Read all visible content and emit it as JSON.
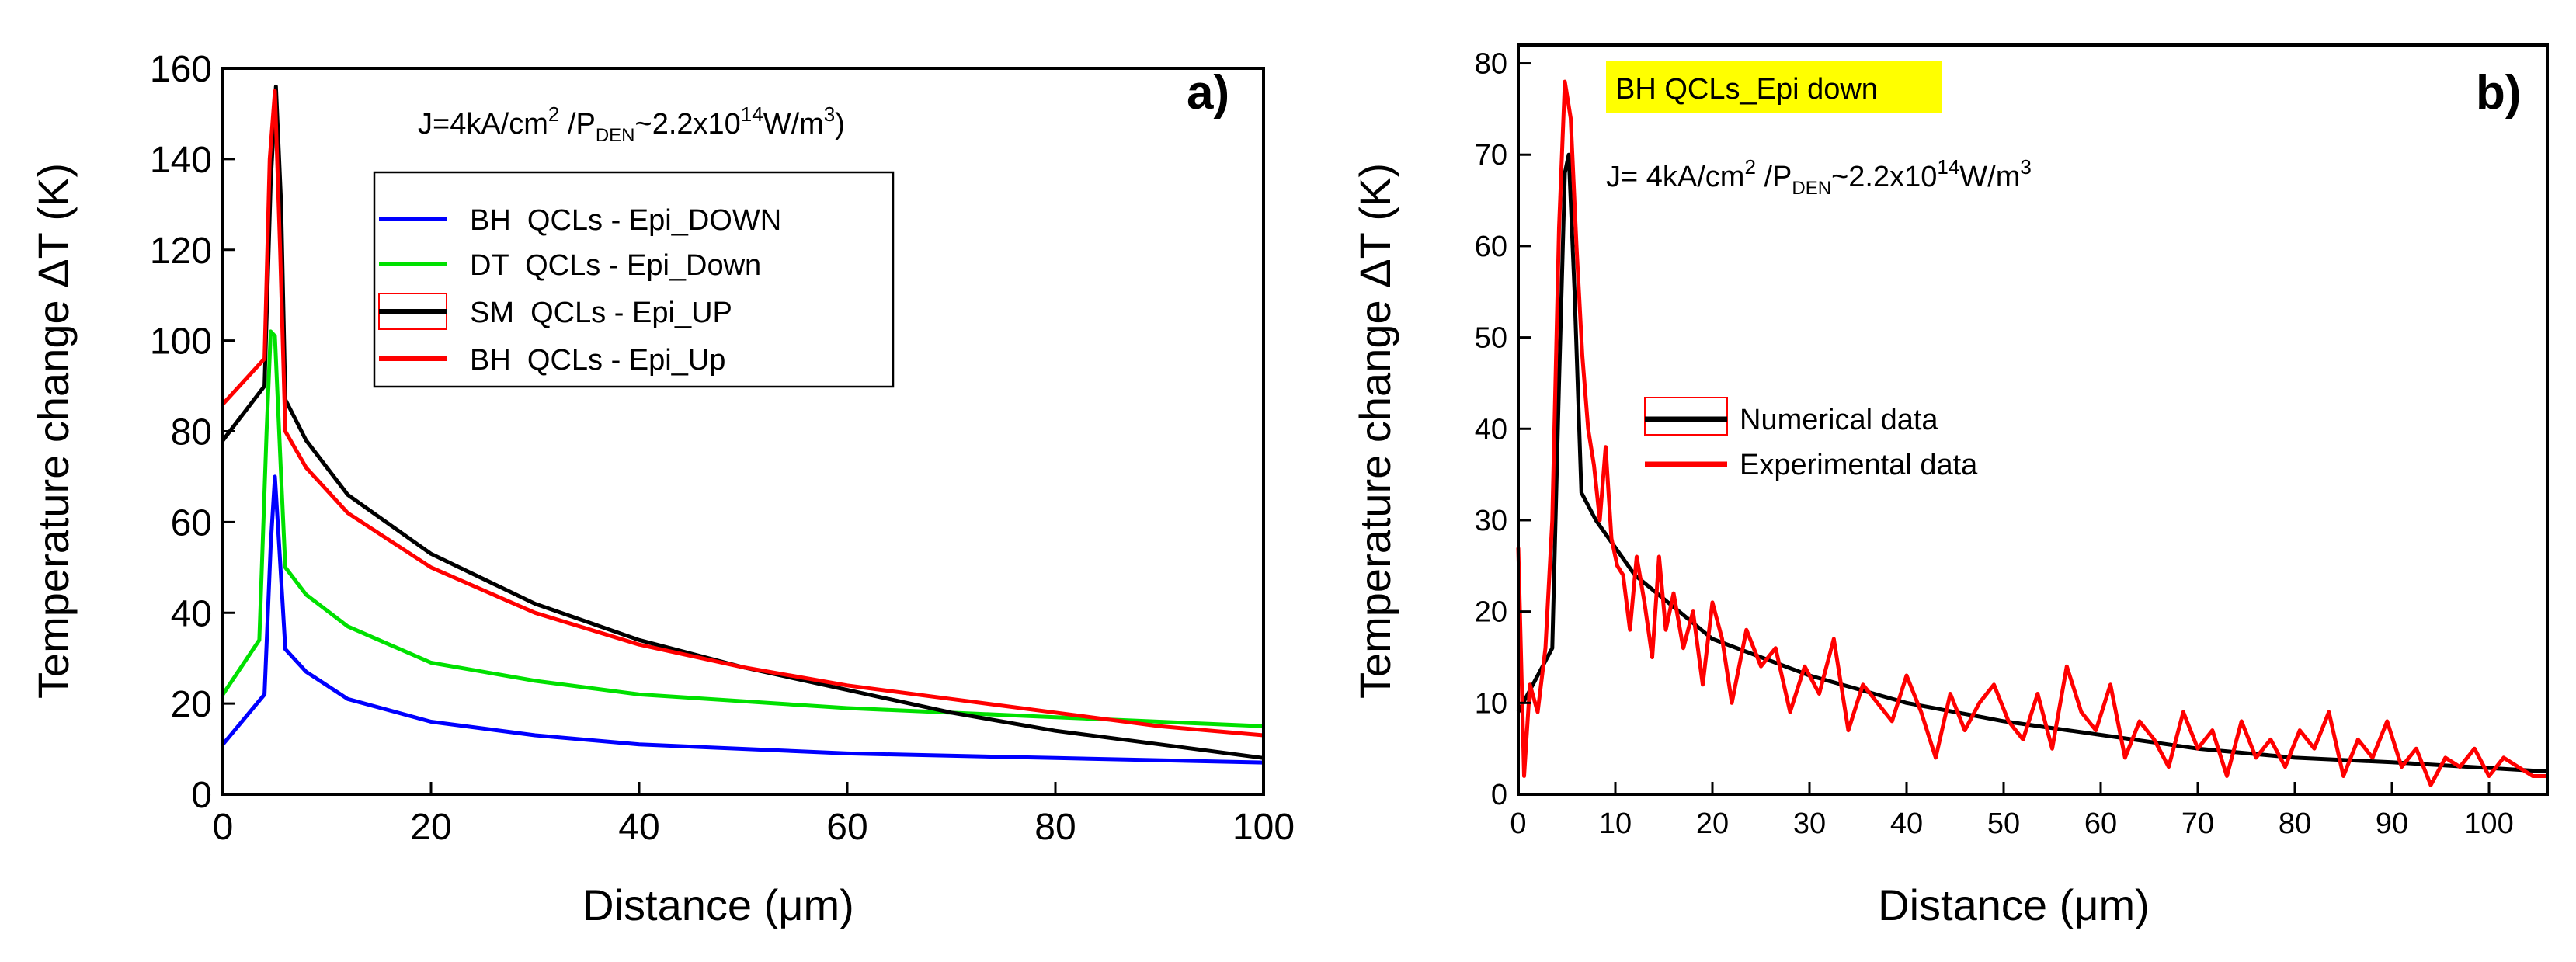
{
  "chart_data": [
    {
      "type": "line",
      "panel_label": "a)",
      "annotation": {
        "main": "J=4kA/cm",
        "sup1": "2",
        "mid": " /P",
        "sub": "DEN",
        "rest": "~2.2x10",
        "sup2": "14",
        "unit": "W/m",
        "sup3": "3",
        "close": ")"
      },
      "ylabel": {
        "text": "Temperature change ",
        "delta": "Δ",
        "symbol": "T (K)"
      },
      "xlabel": {
        "text": "Distance (",
        "mu": "μ",
        "unit": "m)"
      },
      "xlim": [
        0,
        100
      ],
      "ylim": [
        0,
        160
      ],
      "xticks": [
        "0",
        "20",
        "40",
        "60",
        "80",
        "100"
      ],
      "yticks": [
        "0",
        "20",
        "40",
        "60",
        "80",
        "100",
        "120",
        "140",
        "160"
      ],
      "grid": false,
      "legend_position": "upper-middle",
      "series": [
        {
          "name": "BH  QCLs - Epi_DOWN",
          "color": "#0000ff",
          "x": [
            0,
            4,
            4.6,
            5,
            5.4,
            6,
            8,
            12,
            20,
            30,
            40,
            60,
            80,
            100
          ],
          "y": [
            11,
            22,
            55,
            70,
            55,
            32,
            27,
            21,
            16,
            13,
            11,
            9,
            8,
            7
          ]
        },
        {
          "name": "DT  QCLs - Epi_Down",
          "color": "#00e000",
          "x": [
            0,
            3.5,
            4.2,
            4.6,
            5,
            5.6,
            6,
            8,
            12,
            20,
            30,
            40,
            60,
            80,
            100
          ],
          "y": [
            22,
            34,
            80,
            102,
            101,
            70,
            50,
            44,
            37,
            29,
            25,
            22,
            19,
            17,
            15
          ]
        },
        {
          "name": "SM  QCLs - Epi_UP",
          "color": "#000000",
          "x": [
            0,
            4,
            4.6,
            5.1,
            5.6,
            6,
            8,
            12,
            20,
            30,
            40,
            50,
            60,
            70,
            80,
            90,
            100
          ],
          "y": [
            78,
            90,
            135,
            156,
            130,
            87,
            78,
            66,
            53,
            42,
            34,
            28,
            23,
            18,
            14,
            11,
            8
          ]
        },
        {
          "name": "BH  QCLs - Epi_Up",
          "color": "#ff0000",
          "x": [
            0,
            4,
            4.5,
            5,
            5.5,
            6,
            8,
            12,
            20,
            30,
            40,
            50,
            60,
            70,
            80,
            90,
            100
          ],
          "y": [
            86,
            96,
            140,
            155,
            120,
            80,
            72,
            62,
            50,
            40,
            33,
            28,
            24,
            21,
            18,
            15,
            13
          ]
        }
      ]
    },
    {
      "type": "line",
      "panel_label": "b)",
      "title_box": "BH QCLs_Epi down",
      "title_box_color": "#ffff00",
      "annotation": {
        "main": "J= 4kA/cm",
        "sup1": "2",
        "mid": " /P",
        "sub": "DEN",
        "rest": "~2.2x10",
        "sup2": "14",
        "unit": "W/m",
        "sup3": "3"
      },
      "ylabel": {
        "text": "Temperature change ",
        "delta": "Δ",
        "symbol": "T (K)"
      },
      "xlabel": {
        "text": "Distance (",
        "mu": "μ",
        "unit": "m)"
      },
      "xlim": [
        0,
        106
      ],
      "ylim": [
        0,
        82
      ],
      "xticks": [
        "0",
        "10",
        "20",
        "30",
        "40",
        "50",
        "60",
        "70",
        "80",
        "90",
        "100"
      ],
      "yticks": [
        "0",
        "10",
        "20",
        "30",
        "40",
        "50",
        "60",
        "70",
        "80"
      ],
      "grid": false,
      "legend_position": "center",
      "series": [
        {
          "name": "Numerical data",
          "color": "#000000",
          "x": [
            0,
            3.5,
            4.2,
            4.8,
            5.2,
            5.8,
            6.5,
            8,
            12,
            20,
            30,
            40,
            50,
            60,
            70,
            80,
            90,
            106
          ],
          "y": [
            9,
            16,
            45,
            68,
            70,
            55,
            33,
            30,
            24,
            17,
            13,
            10,
            8,
            6.5,
            5,
            4,
            3.5,
            2.5
          ]
        },
        {
          "name": "Experimental data",
          "color": "#ff0000",
          "x": [
            0,
            0.6,
            1.2,
            2,
            2.8,
            3.5,
            4.2,
            4.8,
            5.4,
            6,
            6.6,
            7.2,
            7.8,
            8.4,
            9,
            9.6,
            10.2,
            10.8,
            11.5,
            12.2,
            13,
            13.8,
            14.5,
            15.2,
            16,
            17,
            18,
            19,
            20,
            21,
            22,
            23.5,
            25,
            26.5,
            28,
            29.5,
            31,
            32.5,
            34,
            35.5,
            37,
            38.5,
            40,
            41.5,
            43,
            44.5,
            46,
            47.5,
            49,
            50.5,
            52,
            53.5,
            55,
            56.5,
            58,
            59.5,
            61,
            62.5,
            64,
            65.5,
            67,
            68.5,
            70,
            71.5,
            73,
            74.5,
            76,
            77.5,
            79,
            80.5,
            82,
            83.5,
            85,
            86.5,
            88,
            89.5,
            91,
            92.5,
            94,
            95.5,
            97,
            98.5,
            100,
            101.5,
            103,
            104.5,
            106
          ],
          "y": [
            27,
            2,
            12,
            9,
            16,
            30,
            62,
            78,
            74,
            60,
            48,
            40,
            36,
            30,
            38,
            28,
            25,
            24,
            18,
            26,
            21,
            15,
            26,
            18,
            22,
            16,
            20,
            12,
            21,
            17,
            10,
            18,
            14,
            16,
            9,
            14,
            11,
            17,
            7,
            12,
            10,
            8,
            13,
            9,
            4,
            11,
            7,
            10,
            12,
            8,
            6,
            11,
            5,
            14,
            9,
            7,
            12,
            4,
            8,
            6,
            3,
            9,
            5,
            7,
            2,
            8,
            4,
            6,
            3,
            7,
            5,
            9,
            2,
            6,
            4,
            8,
            3,
            5,
            1,
            4,
            3,
            5,
            2,
            4,
            3,
            2,
            2
          ]
        }
      ]
    }
  ]
}
